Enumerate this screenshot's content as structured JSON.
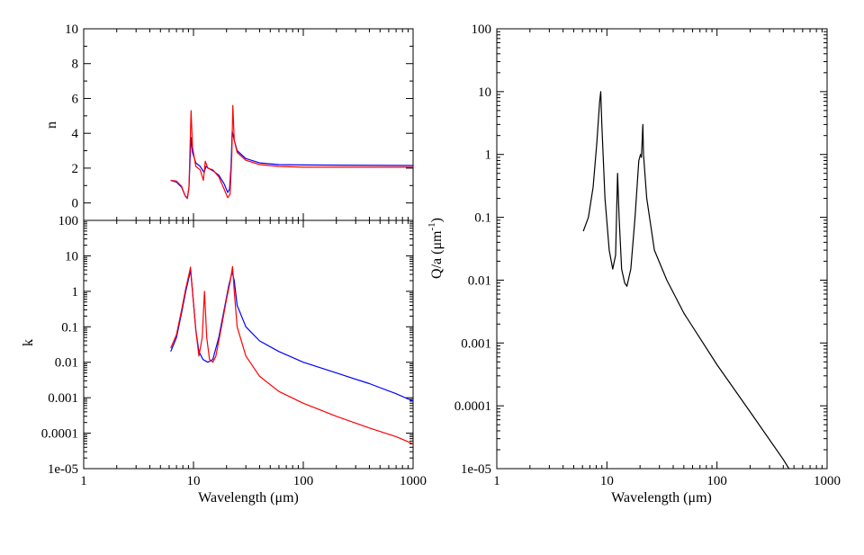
{
  "chart_data": [
    {
      "id": "n-panel",
      "type": "line",
      "xlabel": "",
      "ylabel": "n",
      "xscale": "log",
      "yscale": "linear",
      "xlim": [
        1,
        1000
      ],
      "ylim": [
        -1,
        10
      ],
      "ytick_labels": [
        "0",
        "2",
        "4",
        "6",
        "8",
        "10"
      ],
      "grid": false,
      "series": [
        {
          "color": "#0000ff",
          "points": [
            [
              6.2,
              1.3
            ],
            [
              7,
              1.2
            ],
            [
              7.8,
              0.9
            ],
            [
              8.4,
              0.4
            ],
            [
              8.8,
              0.3
            ],
            [
              9.1,
              0.9
            ],
            [
              9.3,
              2.5
            ],
            [
              9.5,
              3.75
            ],
            [
              9.8,
              2.9
            ],
            [
              10.5,
              2.3
            ],
            [
              11.5,
              2.1
            ],
            [
              12.5,
              1.75
            ],
            [
              13,
              2.1
            ],
            [
              13.6,
              2.0
            ],
            [
              15,
              1.85
            ],
            [
              17,
              1.6
            ],
            [
              19,
              1.1
            ],
            [
              20.5,
              0.6
            ],
            [
              21.3,
              0.8
            ],
            [
              22,
              2.2
            ],
            [
              22.5,
              4.1
            ],
            [
              23.5,
              3.6
            ],
            [
              25,
              3.0
            ],
            [
              30,
              2.55
            ],
            [
              40,
              2.3
            ],
            [
              60,
              2.2
            ],
            [
              100,
              2.18
            ],
            [
              1000,
              2.15
            ]
          ]
        },
        {
          "color": "#ff0000",
          "points": [
            [
              6.2,
              1.3
            ],
            [
              7,
              1.25
            ],
            [
              7.8,
              0.95
            ],
            [
              8.4,
              0.4
            ],
            [
              8.8,
              0.25
            ],
            [
              9.1,
              0.9
            ],
            [
              9.3,
              3.2
            ],
            [
              9.5,
              5.3
            ],
            [
              9.8,
              3.2
            ],
            [
              10.5,
              2.1
            ],
            [
              11.5,
              1.9
            ],
            [
              12.3,
              1.3
            ],
            [
              12.8,
              2.4
            ],
            [
              13.5,
              2.0
            ],
            [
              15,
              1.9
            ],
            [
              17,
              1.5
            ],
            [
              19,
              0.8
            ],
            [
              20.5,
              0.3
            ],
            [
              21.5,
              0.5
            ],
            [
              22.3,
              2.6
            ],
            [
              22.8,
              5.6
            ],
            [
              23.5,
              3.6
            ],
            [
              25,
              2.9
            ],
            [
              30,
              2.45
            ],
            [
              40,
              2.2
            ],
            [
              60,
              2.1
            ],
            [
              100,
              2.05
            ],
            [
              1000,
              2.05
            ]
          ]
        }
      ]
    },
    {
      "id": "k-panel",
      "type": "line",
      "xlabel": "Wavelength (μm)",
      "ylabel": "k",
      "xscale": "log",
      "yscale": "log",
      "xlim": [
        1,
        1000
      ],
      "ylim": [
        1e-05,
        100
      ],
      "xtick_labels": [
        "1",
        "10",
        "100",
        "1000"
      ],
      "ytick_labels": [
        "1e-05",
        "0.0001",
        "0.001",
        "0.01",
        "0.1",
        "1",
        "10",
        "100"
      ],
      "grid": false,
      "series": [
        {
          "color": "#0000ff",
          "points": [
            [
              6.2,
              0.02
            ],
            [
              7,
              0.05
            ],
            [
              7.8,
              0.25
            ],
            [
              8.5,
              1.0
            ],
            [
              9.1,
              2.5
            ],
            [
              9.4,
              4.0
            ],
            [
              9.8,
              1.0
            ],
            [
              10.5,
              0.08
            ],
            [
              11.2,
              0.02
            ],
            [
              12.2,
              0.012
            ],
            [
              13.5,
              0.01
            ],
            [
              15,
              0.012
            ],
            [
              17,
              0.05
            ],
            [
              19,
              0.3
            ],
            [
              21,
              1.5
            ],
            [
              22.5,
              3.5
            ],
            [
              23.5,
              2.0
            ],
            [
              25,
              0.4
            ],
            [
              30,
              0.1
            ],
            [
              40,
              0.04
            ],
            [
              60,
              0.02
            ],
            [
              100,
              0.01
            ],
            [
              200,
              0.005
            ],
            [
              400,
              0.0025
            ],
            [
              700,
              0.0013
            ],
            [
              1000,
              0.0008
            ]
          ]
        },
        {
          "color": "#ff0000",
          "points": [
            [
              6.2,
              0.025
            ],
            [
              7,
              0.06
            ],
            [
              7.8,
              0.3
            ],
            [
              8.5,
              1.2
            ],
            [
              9.1,
              3.0
            ],
            [
              9.4,
              4.8
            ],
            [
              9.8,
              1.0
            ],
            [
              10.5,
              0.08
            ],
            [
              11.2,
              0.015
            ],
            [
              12,
              0.05
            ],
            [
              12.6,
              1.0
            ],
            [
              13.2,
              0.05
            ],
            [
              14,
              0.012
            ],
            [
              15,
              0.01
            ],
            [
              16,
              0.015
            ],
            [
              18,
              0.1
            ],
            [
              20,
              0.6
            ],
            [
              21.5,
              1.8
            ],
            [
              22.7,
              5.0
            ],
            [
              23.5,
              1.0
            ],
            [
              25,
              0.1
            ],
            [
              30,
              0.015
            ],
            [
              40,
              0.004
            ],
            [
              60,
              0.0015
            ],
            [
              100,
              0.0007
            ],
            [
              200,
              0.0003
            ],
            [
              400,
              0.00014
            ],
            [
              700,
              8e-05
            ],
            [
              1000,
              5e-05
            ]
          ]
        }
      ]
    },
    {
      "id": "q-panel",
      "type": "line",
      "xlabel": "Wavelength (μm)",
      "ylabel": "Q/a (μm",
      "ylabel_superscript": "-1",
      "ylabel_suffix": ")",
      "xscale": "log",
      "yscale": "log",
      "xlim": [
        1,
        1000
      ],
      "ylim": [
        1e-05,
        100
      ],
      "xtick_labels": [
        "1",
        "10",
        "100",
        "1000"
      ],
      "ytick_labels": [
        "1e-05",
        "0.0001",
        "0.001",
        "0.01",
        "0.1",
        "1",
        "10",
        "100"
      ],
      "grid": false,
      "series": [
        {
          "color": "#000000",
          "points": [
            [
              6.1,
              0.06
            ],
            [
              6.8,
              0.1
            ],
            [
              7.5,
              0.3
            ],
            [
              8.1,
              1.5
            ],
            [
              8.6,
              7.0
            ],
            [
              8.8,
              10.0
            ],
            [
              9.0,
              3.0
            ],
            [
              9.6,
              0.2
            ],
            [
              10.5,
              0.03
            ],
            [
              11.3,
              0.015
            ],
            [
              12,
              0.025
            ],
            [
              12.5,
              0.5
            ],
            [
              12.9,
              0.1
            ],
            [
              13.6,
              0.015
            ],
            [
              14.5,
              0.009
            ],
            [
              15.2,
              0.008
            ],
            [
              16.5,
              0.015
            ],
            [
              18,
              0.1
            ],
            [
              19.5,
              0.8
            ],
            [
              20.2,
              1.0
            ],
            [
              20.6,
              0.9
            ],
            [
              21.2,
              3.0
            ],
            [
              21.5,
              1.0
            ],
            [
              23,
              0.2
            ],
            [
              27,
              0.03
            ],
            [
              35,
              0.01
            ],
            [
              50,
              0.003
            ],
            [
              100,
              0.00045
            ],
            [
              200,
              8e-05
            ],
            [
              400,
              1.4e-05
            ],
            [
              450,
              1e-05
            ]
          ]
        }
      ]
    }
  ]
}
